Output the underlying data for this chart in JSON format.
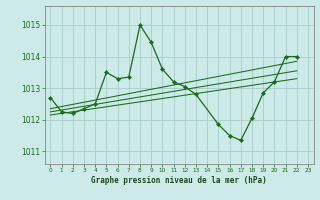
{
  "title": "Graphe pression niveau de la mer (hPa)",
  "bg_color": "#cceae8",
  "grid_color": "#aacccc",
  "line_color": "#1a6b1a",
  "xlim": [
    -0.5,
    23.5
  ],
  "ylim": [
    1010.6,
    1015.6
  ],
  "yticks": [
    1011,
    1012,
    1013,
    1014,
    1015
  ],
  "xticks": [
    0,
    1,
    2,
    3,
    4,
    5,
    6,
    7,
    8,
    9,
    10,
    11,
    12,
    13,
    14,
    15,
    16,
    17,
    18,
    19,
    20,
    21,
    22,
    23
  ],
  "main_series": {
    "x": [
      0,
      1,
      2,
      3,
      4,
      5,
      6,
      7,
      8,
      9,
      10,
      11,
      12,
      13,
      15,
      16,
      17,
      18,
      19,
      20,
      21,
      22
    ],
    "y": [
      1012.7,
      1012.25,
      1012.2,
      1012.35,
      1012.5,
      1013.5,
      1013.3,
      1013.35,
      1015.0,
      1014.45,
      1013.6,
      1013.2,
      1013.05,
      1012.8,
      1011.85,
      1011.5,
      1011.35,
      1012.05,
      1012.85,
      1013.2,
      1014.0,
      1014.0
    ]
  },
  "trend_lines": [
    {
      "x": [
        0,
        22
      ],
      "y": [
        1012.15,
        1013.3
      ]
    },
    {
      "x": [
        0,
        22
      ],
      "y": [
        1012.25,
        1013.55
      ]
    },
    {
      "x": [
        0,
        22
      ],
      "y": [
        1012.35,
        1013.85
      ]
    }
  ]
}
